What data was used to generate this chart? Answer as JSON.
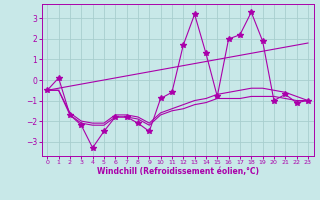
{
  "xlabel": "Windchill (Refroidissement éolien,°C)",
  "background_color": "#c8e8e8",
  "grid_color": "#a8cece",
  "line_color": "#aa00aa",
  "xlim": [
    -0.5,
    23.5
  ],
  "ylim": [
    -3.7,
    3.7
  ],
  "yticks": [
    -3,
    -2,
    -1,
    0,
    1,
    2,
    3
  ],
  "xticks": [
    0,
    1,
    2,
    3,
    4,
    5,
    6,
    7,
    8,
    9,
    10,
    11,
    12,
    13,
    14,
    15,
    16,
    17,
    18,
    19,
    20,
    21,
    22,
    23
  ],
  "series": [
    {
      "x": [
        0,
        1,
        2,
        3,
        4,
        5,
        6,
        7,
        8,
        9,
        10,
        11,
        12,
        13,
        14,
        15,
        16,
        17,
        18,
        19,
        20,
        21,
        22,
        23
      ],
      "y": [
        -0.5,
        0.1,
        -1.7,
        -2.2,
        -3.3,
        -2.5,
        -1.8,
        -1.8,
        -2.1,
        -2.5,
        -0.9,
        -0.6,
        1.7,
        3.2,
        1.3,
        -0.8,
        2.0,
        2.2,
        3.3,
        1.9,
        -1.0,
        -0.7,
        -1.1,
        -1.0
      ],
      "marker": "*",
      "markersize": 4,
      "linewidth": 0.8
    },
    {
      "x": [
        0,
        1,
        2,
        3,
        4,
        5,
        6,
        7,
        8,
        9,
        10,
        11,
        12,
        13,
        14,
        15,
        16,
        17,
        18,
        19,
        20,
        21,
        22,
        23
      ],
      "y": [
        -0.5,
        -0.4,
        -0.3,
        -0.2,
        -0.1,
        0.0,
        0.1,
        0.2,
        0.3,
        0.4,
        0.5,
        0.6,
        0.7,
        0.8,
        0.9,
        1.0,
        1.1,
        1.2,
        1.3,
        1.4,
        1.5,
        1.6,
        1.7,
        1.8
      ],
      "marker": null,
      "markersize": 0,
      "linewidth": 0.8
    },
    {
      "x": [
        0,
        1,
        2,
        3,
        4,
        5,
        6,
        7,
        8,
        9,
        10,
        11,
        12,
        13,
        14,
        15,
        16,
        17,
        18,
        19,
        20,
        21,
        22,
        23
      ],
      "y": [
        -0.5,
        -0.5,
        -1.7,
        -2.1,
        -2.2,
        -2.2,
        -1.8,
        -1.8,
        -1.9,
        -2.2,
        -1.7,
        -1.5,
        -1.4,
        -1.2,
        -1.1,
        -0.9,
        -0.9,
        -0.9,
        -0.8,
        -0.8,
        -0.8,
        -0.9,
        -1.0,
        -1.0
      ],
      "marker": null,
      "markersize": 0,
      "linewidth": 0.8
    },
    {
      "x": [
        0,
        1,
        2,
        3,
        4,
        5,
        6,
        7,
        8,
        9,
        10,
        11,
        12,
        13,
        14,
        15,
        16,
        17,
        18,
        19,
        20,
        21,
        22,
        23
      ],
      "y": [
        -0.5,
        -0.5,
        -1.6,
        -2.0,
        -2.1,
        -2.1,
        -1.7,
        -1.7,
        -1.8,
        -2.1,
        -1.6,
        -1.4,
        -1.2,
        -1.0,
        -0.9,
        -0.7,
        -0.6,
        -0.5,
        -0.4,
        -0.4,
        -0.5,
        -0.6,
        -0.8,
        -1.0
      ],
      "marker": null,
      "markersize": 0,
      "linewidth": 0.8
    }
  ]
}
